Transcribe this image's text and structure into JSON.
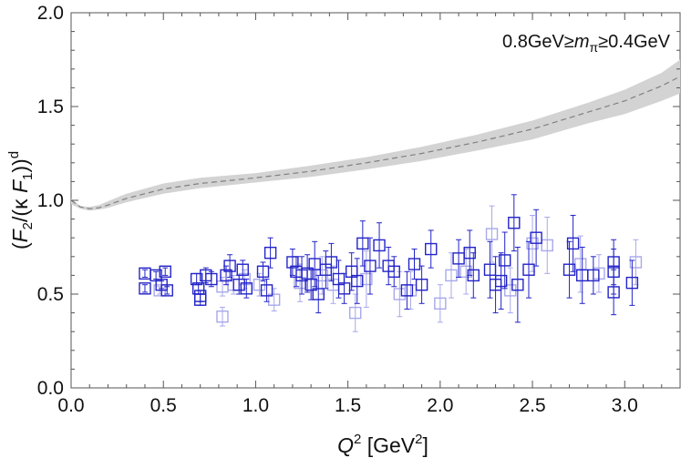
{
  "chart_data": {
    "type": "scatter",
    "title": "",
    "annotation": "0.8GeV≥mπ≥0.4GeV",
    "annotation_parts": {
      "prefix": "0.8GeV≥",
      "var": "m",
      "sub": "π",
      "suffix": "≥0.4GeV"
    },
    "xlabel": {
      "var": "Q",
      "sup": "2",
      "unit_pre": " [GeV",
      "unit_sup": "2",
      "unit_post": "]"
    },
    "ylabel": {
      "open": "(",
      "F2": "F",
      "F2_sub": "2",
      "mid": "/(κ ",
      "F1": "F",
      "F1_sub": "1",
      "close": "))",
      "sup": "d"
    },
    "xlim": [
      0,
      3.3
    ],
    "ylim": [
      0,
      2.0
    ],
    "xticks": [
      "0.0",
      "0.5",
      "1.0",
      "1.5",
      "2.0",
      "2.5",
      "3.0"
    ],
    "xtick_values": [
      0.0,
      0.5,
      1.0,
      1.5,
      2.0,
      2.5,
      3.0
    ],
    "yticks": [
      "0.0",
      "0.5",
      "1.0",
      "1.5",
      "2.0"
    ],
    "ytick_values": [
      0.0,
      0.5,
      1.0,
      1.5,
      2.0
    ],
    "colors": {
      "dark": "#2323c8",
      "light": "#a8a8ec",
      "band": "#d3d3d3",
      "curve": "#808080",
      "axis": "#555555"
    },
    "curve": {
      "name": "model",
      "x": [
        0.0,
        0.05,
        0.1,
        0.15,
        0.2,
        0.3,
        0.5,
        0.7,
        1.0,
        1.3,
        1.6,
        1.9,
        2.2,
        2.5,
        2.8,
        3.0,
        3.2,
        3.3
      ],
      "y": [
        1.0,
        0.965,
        0.955,
        0.96,
        0.975,
        1.01,
        1.06,
        1.09,
        1.12,
        1.155,
        1.2,
        1.25,
        1.31,
        1.38,
        1.47,
        1.53,
        1.61,
        1.66
      ],
      "lower": [
        0.98,
        0.955,
        0.945,
        0.95,
        0.96,
        0.99,
        1.035,
        1.065,
        1.095,
        1.125,
        1.165,
        1.21,
        1.265,
        1.325,
        1.41,
        1.46,
        1.53,
        1.57
      ],
      "upper": [
        1.01,
        0.97,
        0.965,
        0.975,
        0.995,
        1.035,
        1.09,
        1.12,
        1.145,
        1.185,
        1.23,
        1.285,
        1.35,
        1.425,
        1.52,
        1.59,
        1.68,
        1.75
      ]
    },
    "series": [
      {
        "name": "dark",
        "points": [
          [
            0.4,
            0.61,
            0.02
          ],
          [
            0.4,
            0.53,
            0.02
          ],
          [
            0.46,
            0.6,
            0.02
          ],
          [
            0.49,
            0.55,
            0.02
          ],
          [
            0.51,
            0.62,
            0.02
          ],
          [
            0.52,
            0.52,
            0.02
          ],
          [
            0.68,
            0.58,
            0.03
          ],
          [
            0.69,
            0.53,
            0.03
          ],
          [
            0.7,
            0.49,
            0.03
          ],
          [
            0.7,
            0.47,
            0.03
          ],
          [
            0.73,
            0.6,
            0.04
          ],
          [
            0.76,
            0.58,
            0.04
          ],
          [
            0.84,
            0.6,
            0.05
          ],
          [
            0.86,
            0.65,
            0.06
          ],
          [
            0.91,
            0.55,
            0.05
          ],
          [
            0.93,
            0.63,
            0.05
          ],
          [
            0.95,
            0.53,
            0.05
          ],
          [
            1.04,
            0.62,
            0.05
          ],
          [
            1.06,
            0.52,
            0.06
          ],
          [
            1.08,
            0.72,
            0.08
          ],
          [
            1.2,
            0.67,
            0.07
          ],
          [
            1.22,
            0.62,
            0.08
          ],
          [
            1.25,
            0.6,
            0.1
          ],
          [
            1.28,
            0.61,
            0.1
          ],
          [
            1.3,
            0.55,
            0.08
          ],
          [
            1.32,
            0.66,
            0.12
          ],
          [
            1.34,
            0.5,
            0.1
          ],
          [
            1.38,
            0.63,
            0.1
          ],
          [
            1.41,
            0.67,
            0.1
          ],
          [
            1.45,
            0.58,
            0.1
          ],
          [
            1.48,
            0.53,
            0.08
          ],
          [
            1.52,
            0.62,
            0.1
          ],
          [
            1.55,
            0.57,
            0.12
          ],
          [
            1.58,
            0.77,
            0.12
          ],
          [
            1.62,
            0.65,
            0.15
          ],
          [
            1.67,
            0.76,
            0.12
          ],
          [
            1.72,
            0.65,
            0.1
          ],
          [
            1.75,
            0.62,
            0.08
          ],
          [
            1.82,
            0.52,
            0.1
          ],
          [
            1.86,
            0.66,
            0.08
          ],
          [
            1.9,
            0.55,
            0.1
          ],
          [
            1.95,
            0.74,
            0.1
          ],
          [
            2.1,
            0.69,
            0.1
          ],
          [
            2.16,
            0.72,
            0.12
          ],
          [
            2.18,
            0.6,
            0.12
          ],
          [
            2.27,
            0.63,
            0.15
          ],
          [
            2.3,
            0.55,
            0.15
          ],
          [
            2.33,
            0.57,
            0.15
          ],
          [
            2.35,
            0.68,
            0.15
          ],
          [
            2.4,
            0.88,
            0.15
          ],
          [
            2.42,
            0.55,
            0.2
          ],
          [
            2.48,
            0.63,
            0.15
          ],
          [
            2.52,
            0.8,
            0.15
          ],
          [
            2.7,
            0.63,
            0.15
          ],
          [
            2.72,
            0.77,
            0.15
          ],
          [
            2.77,
            0.6,
            0.15
          ],
          [
            2.83,
            0.6,
            0.1
          ],
          [
            2.94,
            0.67,
            0.12
          ],
          [
            2.94,
            0.62,
            0.12
          ],
          [
            2.94,
            0.51,
            0.12
          ],
          [
            3.04,
            0.56,
            0.12
          ]
        ]
      },
      {
        "name": "light",
        "points": [
          [
            0.48,
            0.52,
            0.02
          ],
          [
            0.82,
            0.38,
            0.05
          ],
          [
            0.82,
            0.54,
            0.05
          ],
          [
            0.88,
            0.55,
            0.05
          ],
          [
            0.94,
            0.58,
            0.05
          ],
          [
            1.02,
            0.55,
            0.06
          ],
          [
            1.1,
            0.47,
            0.06
          ],
          [
            1.24,
            0.56,
            0.1
          ],
          [
            1.36,
            0.6,
            0.1
          ],
          [
            1.42,
            0.55,
            0.1
          ],
          [
            1.54,
            0.4,
            0.1
          ],
          [
            1.6,
            0.58,
            0.15
          ],
          [
            1.78,
            0.5,
            0.12
          ],
          [
            1.84,
            0.52,
            0.1
          ],
          [
            2.0,
            0.45,
            0.1
          ],
          [
            2.06,
            0.6,
            0.12
          ],
          [
            2.14,
            0.62,
            0.12
          ],
          [
            2.28,
            0.82,
            0.15
          ],
          [
            2.38,
            0.52,
            0.12
          ],
          [
            2.5,
            0.77,
            0.15
          ],
          [
            2.58,
            0.76,
            0.15
          ],
          [
            2.76,
            0.66,
            0.15
          ],
          [
            2.86,
            0.61,
            0.1
          ],
          [
            3.06,
            0.67,
            0.12
          ]
        ]
      }
    ]
  }
}
